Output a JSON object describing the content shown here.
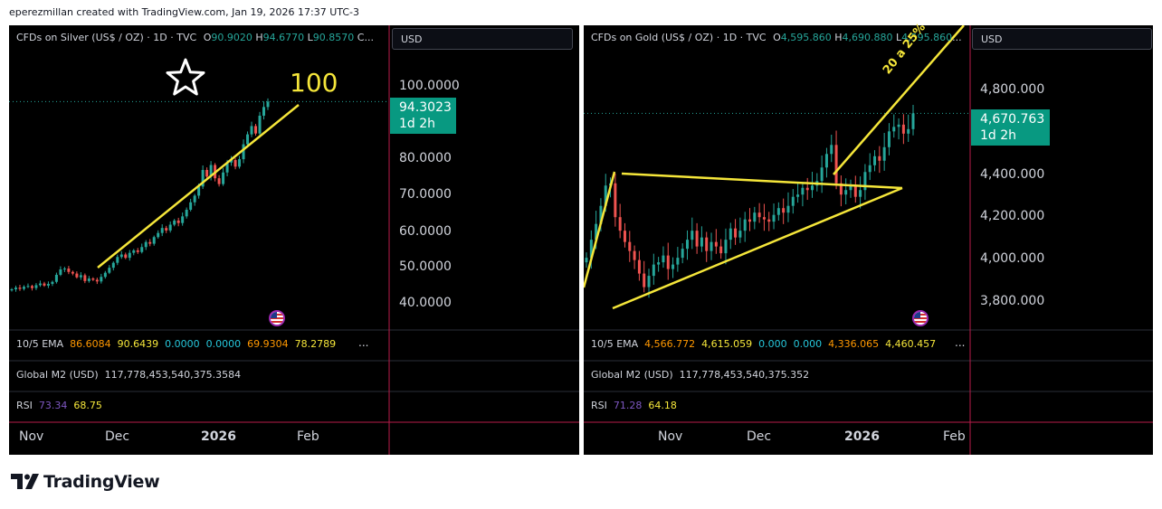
{
  "header": "eperezmillan created with TradingView.com, Jan 19, 2026 17:37 UTC-3",
  "logo_text": "TradingView",
  "chart_data": [
    {
      "type": "candlestick",
      "symbol_line": {
        "name": "CFDs on Silver (US$ / OZ) · 1D · TVC",
        "o_label": "O",
        "o": "90.9020",
        "h_label": "H",
        "h": "94.6770",
        "l_label": "L",
        "l": "90.8570",
        "c_label": "C..."
      },
      "currency": "USD",
      "y_ticks": [
        "100.0000",
        "80.0000",
        "70.0000",
        "60.0000",
        "50.0000",
        "40.0000"
      ],
      "ylim": [
        37,
        112
      ],
      "last_price": "94.3023",
      "countdown": "1d 2h",
      "x_ticks": [
        "Nov",
        "Dec",
        "2026",
        "Feb"
      ],
      "annotation": "100",
      "annotation_icon": "star-icon",
      "indicators": {
        "ema": {
          "label": "10/5 EMA",
          "values": [
            "86.6084",
            "90.6439",
            "0.0000",
            "0.0000",
            "69.9304",
            "78.2789"
          ],
          "colors": [
            "#ff9800",
            "#f5e63a",
            "#26c6da",
            "#26c6da",
            "#ff9800",
            "#f5e63a"
          ]
        },
        "m2": {
          "label": "Global M2 (USD)",
          "value": "117,778,453,540,375.3584"
        },
        "rsi": {
          "label": "RSI",
          "values": [
            "73.34",
            "68.75"
          ],
          "colors": [
            "#7e57c2",
            "#f5e63a"
          ]
        }
      },
      "closes": [
        49.0,
        49.4,
        49.1,
        49.6,
        49.8,
        49.3,
        50.0,
        50.4,
        49.9,
        50.3,
        50.8,
        52.5,
        53.8,
        54.0,
        53.2,
        52.8,
        51.9,
        52.4,
        51.0,
        51.6,
        51.3,
        50.9,
        52.0,
        53.0,
        54.2,
        55.4,
        56.8,
        57.4,
        56.6,
        57.8,
        58.4,
        58.0,
        59.2,
        60.4,
        60.0,
        61.6,
        62.6,
        63.8,
        63.2,
        64.6,
        65.6,
        65.0,
        66.6,
        68.2,
        70.0,
        71.6,
        73.8,
        77.8,
        76.2,
        79.0,
        75.8,
        74.4,
        77.2,
        79.6,
        80.2,
        78.6,
        80.4,
        84.0,
        86.4,
        88.4,
        86.6,
        90.9,
        93.0,
        94.3
      ]
    },
    {
      "type": "candlestick",
      "symbol_line": {
        "name": "CFDs on Gold (US$ / OZ) · 1D · TVC",
        "o_label": "O",
        "o": "4,595.860",
        "h_label": "H",
        "h": "4,690.880",
        "l_label": "L",
        "l": "4,595.860",
        "c_label": "..."
      },
      "currency": "USD",
      "y_ticks": [
        "4,800.000",
        "4,400.000",
        "4,200.000",
        "4,000.000",
        "3,800.000"
      ],
      "ylim": [
        3710,
        5060
      ],
      "last_price": "4,670.763",
      "countdown": "1d 2h",
      "x_ticks": [
        "Nov",
        "Dec",
        "2026",
        "Feb"
      ],
      "annotation": "20 a 25%",
      "indicators": {
        "ema": {
          "label": "10/5 EMA",
          "values": [
            "4,566.772",
            "4,615.059",
            "0.000",
            "0.000",
            "4,336.065",
            "4,460.457"
          ],
          "colors": [
            "#ff9800",
            "#f5e63a",
            "#26c6da",
            "#26c6da",
            "#ff9800",
            "#f5e63a"
          ]
        },
        "m2": {
          "label": "Global M2 (USD)",
          "value": "117,778,453,540,375.352"
        },
        "rsi": {
          "label": "RSI",
          "values": [
            "71.28",
            "64.18"
          ],
          "colors": [
            "#7e57c2",
            "#f5e63a"
          ]
        }
      },
      "closes": [
        4030,
        4110,
        4180,
        4260,
        4350,
        4360,
        4210,
        4150,
        4100,
        4060,
        4020,
        3960,
        3900,
        3950,
        4000,
        4010,
        4040,
        3980,
        4000,
        4030,
        4070,
        4110,
        4150,
        4080,
        4120,
        4060,
        4100,
        4080,
        4050,
        4110,
        4160,
        4120,
        4150,
        4200,
        4190,
        4230,
        4210,
        4200,
        4190,
        4220,
        4250,
        4230,
        4260,
        4300,
        4310,
        4340,
        4330,
        4350,
        4370,
        4430,
        4490,
        4530,
        4360,
        4310,
        4330,
        4350,
        4300,
        4330,
        4410,
        4440,
        4480,
        4460,
        4520,
        4590,
        4610,
        4620,
        4580,
        4600,
        4670
      ]
    }
  ]
}
